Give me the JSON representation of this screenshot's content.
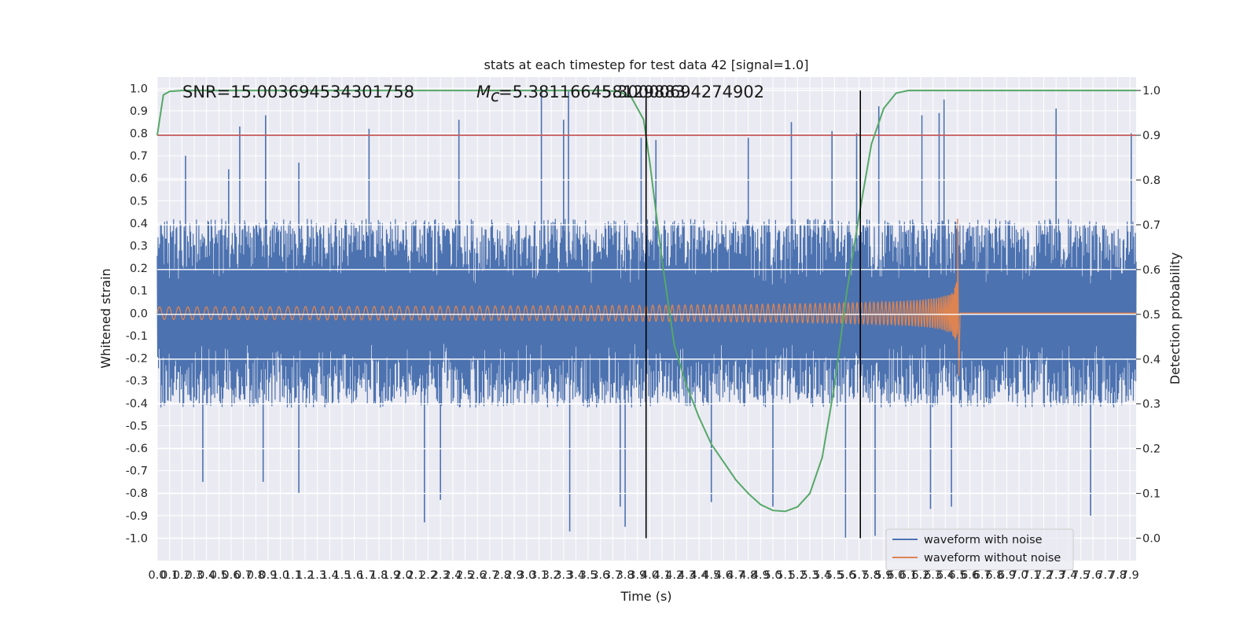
{
  "chart_data": {
    "type": "line",
    "title": "stats at each timestep for test data 42 [signal=1.0]",
    "xlabel": "Time (s)",
    "ylabel": "Whitened strain",
    "y2label": "Detection probability",
    "xlim": [
      0.0,
      7.95
    ],
    "ylim": [
      -1.1,
      1.05
    ],
    "y2lim": [
      -0.05,
      1.03
    ],
    "xtick_step": 0.1,
    "ytick_labels": [
      "1.0",
      "0.9",
      "0.8",
      "0.7",
      "0.6",
      "0.5",
      "0.4",
      "0.3",
      "0.2",
      "0.1",
      "0.0",
      "-0.1",
      "-0.2",
      "-0.3",
      "-0.4",
      "-0.5",
      "-0.6",
      "-0.7",
      "-0.8",
      "-0.9",
      "-1.0"
    ],
    "y2tick_labels": [
      "1.0",
      "0.9",
      "0.8",
      "0.7",
      "0.6",
      "0.5",
      "0.4",
      "0.3",
      "0.2",
      "0.1",
      "0.0"
    ],
    "annotations": {
      "snr": "SNR=15.003694534301758",
      "mc_prefix": "M",
      "mc_sub": "c",
      "mc_value": "=5.381166458129883",
      "mc_overlap": "5.30000694274902"
    },
    "threshold": 0.9,
    "vlines": [
      3.97,
      5.71
    ],
    "grid": true,
    "legend_position": "lower-right",
    "series": [
      {
        "name": "waveform with noise",
        "color": "#4c72b0",
        "noise_envelope": 0.42,
        "spikes": [
          [
            0.23,
            0.7
          ],
          [
            0.58,
            0.64
          ],
          [
            0.67,
            0.83
          ],
          [
            0.88,
            0.88
          ],
          [
            1.15,
            0.67
          ],
          [
            1.72,
            0.82
          ],
          [
            2.45,
            0.86
          ],
          [
            3.12,
            1.0
          ],
          [
            3.3,
            0.86
          ],
          [
            3.34,
            0.99
          ],
          [
            3.93,
            0.78
          ],
          [
            4.05,
            0.77
          ],
          [
            4.8,
            0.78
          ],
          [
            5.15,
            0.85
          ],
          [
            5.48,
            0.81
          ],
          [
            5.68,
            0.8
          ],
          [
            5.86,
            0.92
          ],
          [
            6.21,
            0.88
          ],
          [
            6.35,
            0.89
          ],
          [
            6.39,
            0.95
          ],
          [
            7.3,
            0.91
          ],
          [
            7.91,
            0.8
          ],
          [
            0.37,
            -0.75
          ],
          [
            0.86,
            -0.75
          ],
          [
            1.15,
            -0.8
          ],
          [
            2.17,
            -0.93
          ],
          [
            2.3,
            -0.83
          ],
          [
            3.35,
            -0.97
          ],
          [
            3.76,
            -0.86
          ],
          [
            3.8,
            -0.95
          ],
          [
            4.5,
            -0.84
          ],
          [
            5.0,
            -0.86
          ],
          [
            5.59,
            -1.0
          ],
          [
            5.83,
            -0.99
          ],
          [
            6.28,
            -0.87
          ],
          [
            6.45,
            -0.86
          ],
          [
            7.58,
            -0.9
          ]
        ]
      },
      {
        "name": "waveform without noise",
        "color": "#dd8452",
        "chirp_end_time": 6.5,
        "peak_positive": 0.42,
        "peak_negative": -0.28,
        "ringdown_offset": 0.0
      },
      {
        "name": "detection probability",
        "color": "#55a868",
        "x": [
          0.0,
          0.05,
          0.1,
          0.2,
          3.6,
          3.75,
          3.85,
          3.95,
          4.0,
          4.1,
          4.2,
          4.3,
          4.4,
          4.5,
          4.6,
          4.7,
          4.8,
          4.9,
          5.0,
          5.1,
          5.2,
          5.3,
          5.4,
          5.5,
          5.6,
          5.7,
          5.8,
          5.9,
          6.0,
          6.1,
          6.2,
          7.95
        ],
        "y": [
          0.9,
          0.99,
          0.998,
          1.0,
          1.0,
          0.998,
          0.985,
          0.935,
          0.84,
          0.62,
          0.43,
          0.34,
          0.27,
          0.21,
          0.17,
          0.13,
          0.1,
          0.075,
          0.062,
          0.06,
          0.07,
          0.1,
          0.18,
          0.34,
          0.55,
          0.72,
          0.88,
          0.96,
          0.994,
          1.0,
          1.0,
          1.0
        ]
      },
      {
        "name": "threshold",
        "color": "#c44e52",
        "y": 0.9
      }
    ]
  },
  "legend": {
    "items": [
      {
        "label": "waveform with noise",
        "color": "#4c72b0"
      },
      {
        "label": "waveform without noise",
        "color": "#dd8452"
      }
    ]
  }
}
